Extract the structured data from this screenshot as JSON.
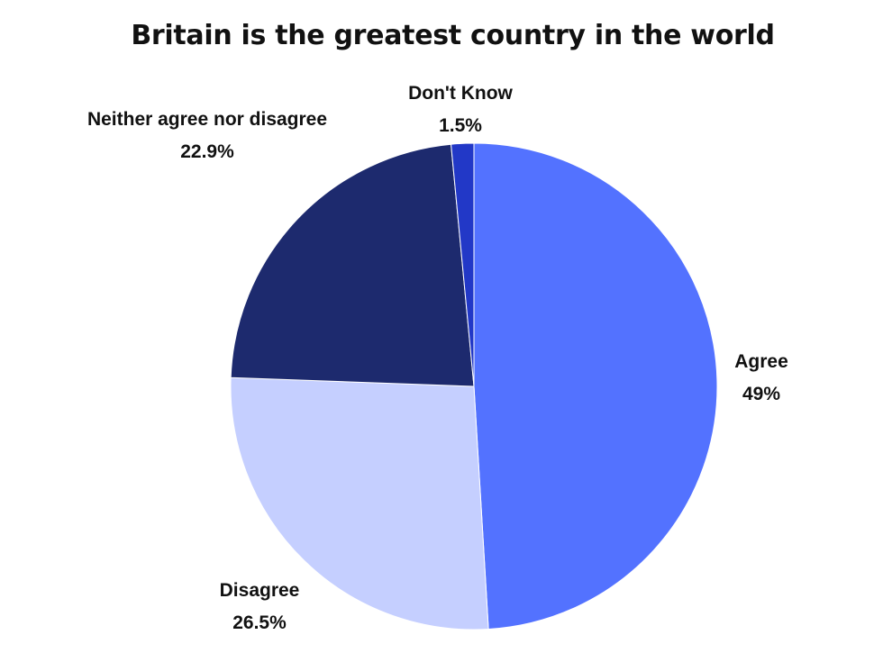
{
  "chart_data": {
    "type": "pie",
    "title": "Britain is the greatest country in the world",
    "slices": [
      {
        "label": "Agree",
        "value": 49,
        "value_label": "49%",
        "color": "#5372ff"
      },
      {
        "label": "Disagree",
        "value": 26.5,
        "value_label": "26.5%",
        "color": "#c5cfff"
      },
      {
        "label": "Neither agree nor disagree",
        "value": 22.9,
        "value_label": "22.9%",
        "color": "#1d2a6e"
      },
      {
        "label": "Don't Know",
        "value": 1.5,
        "value_label": "1.5%",
        "color": "#2238c7"
      }
    ],
    "start_angle": "12 o'clock",
    "direction": "clockwise",
    "legend": "none"
  }
}
